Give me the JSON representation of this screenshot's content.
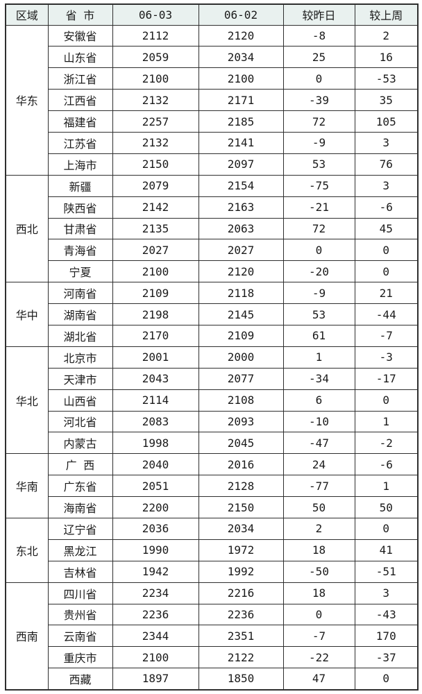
{
  "chart_data": {
    "type": "table",
    "columns": [
      "区域",
      "省 市",
      "06-03",
      "06-02",
      "较昨日",
      "较上周"
    ],
    "groups": [
      {
        "region": "华东",
        "rows": [
          [
            "安徽省",
            2112,
            2120,
            -8,
            2
          ],
          [
            "山东省",
            2059,
            2034,
            25,
            16
          ],
          [
            "浙江省",
            2100,
            2100,
            0,
            -53
          ],
          [
            "江西省",
            2132,
            2171,
            -39,
            35
          ],
          [
            "福建省",
            2257,
            2185,
            72,
            105
          ],
          [
            "江苏省",
            2132,
            2141,
            -9,
            3
          ],
          [
            "上海市",
            2150,
            2097,
            53,
            76
          ]
        ]
      },
      {
        "region": "西北",
        "rows": [
          [
            "新疆",
            2079,
            2154,
            -75,
            3
          ],
          [
            "陕西省",
            2142,
            2163,
            -21,
            -6
          ],
          [
            "甘肃省",
            2135,
            2063,
            72,
            45
          ],
          [
            "青海省",
            2027,
            2027,
            0,
            0
          ],
          [
            "宁夏",
            2100,
            2120,
            -20,
            0
          ]
        ]
      },
      {
        "region": "华中",
        "rows": [
          [
            "河南省",
            2109,
            2118,
            -9,
            21
          ],
          [
            "湖南省",
            2198,
            2145,
            53,
            -44
          ],
          [
            "湖北省",
            2170,
            2109,
            61,
            -7
          ]
        ]
      },
      {
        "region": "华北",
        "rows": [
          [
            "北京市",
            2001,
            2000,
            1,
            -3
          ],
          [
            "天津市",
            2043,
            2077,
            -34,
            -17
          ],
          [
            "山西省",
            2114,
            2108,
            6,
            0
          ],
          [
            "河北省",
            2083,
            2093,
            -10,
            1
          ],
          [
            "内蒙古",
            1998,
            2045,
            -47,
            -2
          ]
        ]
      },
      {
        "region": "华南",
        "rows": [
          [
            "广 西",
            2040,
            2016,
            24,
            -6
          ],
          [
            "广东省",
            2051,
            2128,
            -77,
            1
          ],
          [
            "海南省",
            2200,
            2150,
            50,
            50
          ]
        ]
      },
      {
        "region": "东北",
        "rows": [
          [
            "辽宁省",
            2036,
            2034,
            2,
            0
          ],
          [
            "黑龙江",
            1990,
            1972,
            18,
            41
          ],
          [
            "吉林省",
            1942,
            1992,
            -50,
            -51
          ]
        ]
      },
      {
        "region": "西南",
        "rows": [
          [
            "四川省",
            2234,
            2216,
            18,
            3
          ],
          [
            "贵州省",
            2236,
            2236,
            0,
            -43
          ],
          [
            "云南省",
            2344,
            2351,
            -7,
            170
          ],
          [
            "重庆市",
            2100,
            2122,
            -22,
            -37
          ],
          [
            "西藏",
            1897,
            1850,
            47,
            0
          ]
        ]
      }
    ],
    "layout": {
      "grid": true,
      "legend": "none"
    },
    "colors": {
      "positive_text": "#e60000",
      "negative_text": "#008000",
      "zero_text": "#1a1a1a",
      "header_background": "#e9f1ef",
      "body_background": "#ffffff",
      "border": "#2e2e2e"
    }
  }
}
